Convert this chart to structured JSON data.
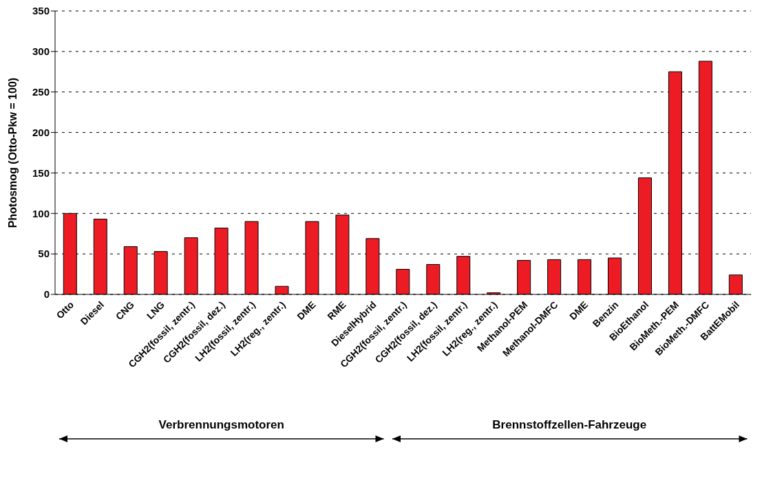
{
  "chart_data": {
    "type": "bar",
    "ylabel": "Photosmog (Otto-Pkw = 100)",
    "categories": [
      "Otto",
      "Diesel",
      "CNG",
      "LNG",
      "CGH2(fossil, zentr.)",
      "CGH2(fossil, dez.)",
      "LH2(fossil, zentr.)",
      "LH2(reg., zentr.)",
      "DME",
      "RME",
      "DieselHybrid",
      "CGH2(fossil, zentr.)",
      "CGH2(fossil, dez.)",
      "LH2(fossil, zentr.)",
      "LH2(reg., zentr.)",
      "Methanol-PEM",
      "Methanol-DMFC",
      "DME",
      "Benzin",
      "BioEthanol",
      "BioMeth.-PEM",
      "BioMeth.-DMFC",
      "BattEMobil"
    ],
    "values": [
      100,
      93,
      59,
      53,
      70,
      82,
      90,
      10,
      90,
      98,
      69,
      31,
      37,
      47,
      2,
      42,
      43,
      43,
      45,
      144,
      275,
      288,
      24
    ],
    "color": "#ed1c24",
    "ylim": [
      0,
      350
    ],
    "yticks": [
      0,
      50,
      100,
      150,
      200,
      250,
      300,
      350
    ],
    "grid": "y",
    "annotations": [
      "Verbrennungsmotoren",
      "Brennstoffzellen-Fahrzeuge"
    ]
  }
}
